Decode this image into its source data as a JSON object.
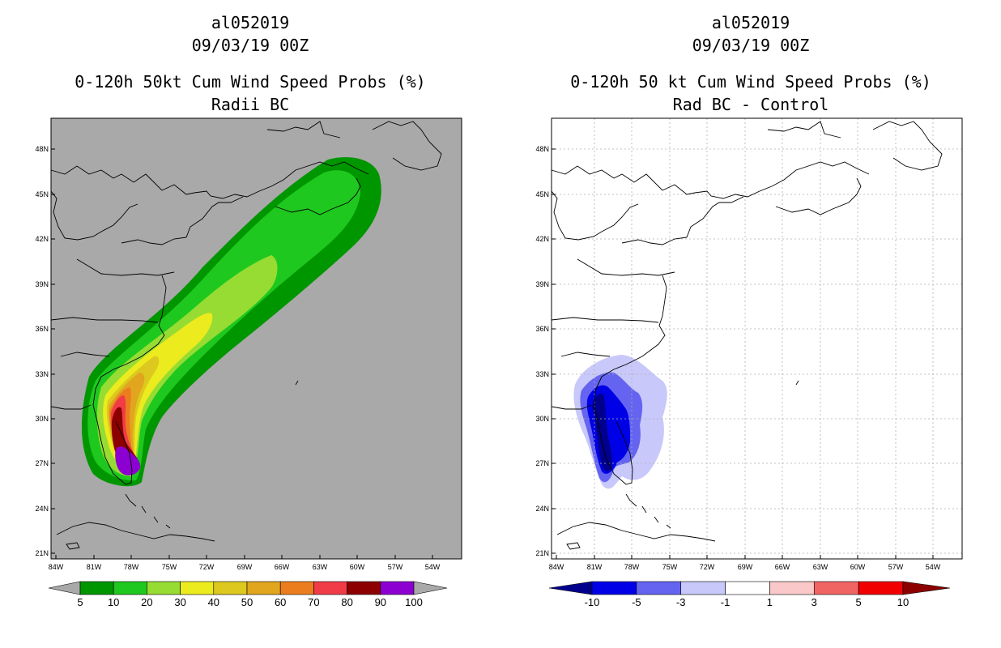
{
  "panels": [
    {
      "storm_id": "al052019",
      "date": "09/03/19 00Z",
      "product": "0-120h 50kt Cum Wind Speed Probs (%)",
      "subtitle": "Radii BC",
      "background": "#a9a9a9",
      "lon_labels": [
        "84W",
        "81W",
        "78W",
        "75W",
        "72W",
        "69W",
        "66W",
        "63W",
        "60W",
        "57W",
        "54W"
      ],
      "lat_labels": [
        "48N",
        "45N",
        "42N",
        "39N",
        "36N",
        "33N",
        "30N",
        "27N",
        "24N",
        "21N"
      ],
      "colorbar": {
        "labels": [
          "5",
          "10",
          "20",
          "30",
          "40",
          "50",
          "60",
          "70",
          "80",
          "90",
          "100"
        ],
        "colors": [
          "#009600",
          "#1ec81e",
          "#96dc32",
          "#ebeb1e",
          "#dcc81e",
          "#e1a51e",
          "#ec7d1e",
          "#f03c46",
          "#8c0000",
          "#8c00d2"
        ],
        "end_colors": [
          "#a9a9a9",
          "#a9a9a9"
        ]
      }
    },
    {
      "storm_id": "al052019",
      "date": "09/03/19 00Z",
      "product": "0-120h 50 kt Cum Wind Speed Probs (%)",
      "subtitle": "Rad BC - Control",
      "background": "#ffffff",
      "lon_labels": [
        "84W",
        "81W",
        "78W",
        "75W",
        "72W",
        "69W",
        "66W",
        "63W",
        "60W",
        "57W",
        "54W"
      ],
      "lat_labels": [
        "48N",
        "45N",
        "42N",
        "39N",
        "36N",
        "33N",
        "30N",
        "27N",
        "24N",
        "21N"
      ],
      "colorbar": {
        "labels": [
          "-10",
          "-5",
          "-3",
          "-1",
          "1",
          "3",
          "5",
          "10"
        ],
        "colors": [
          "#0000e6",
          "#6464f0",
          "#c8c8fa",
          "#ffffff",
          "#fac8c8",
          "#f06464",
          "#f00000"
        ],
        "end_colors": [
          "#00008c",
          "#8c0000"
        ]
      }
    }
  ]
}
